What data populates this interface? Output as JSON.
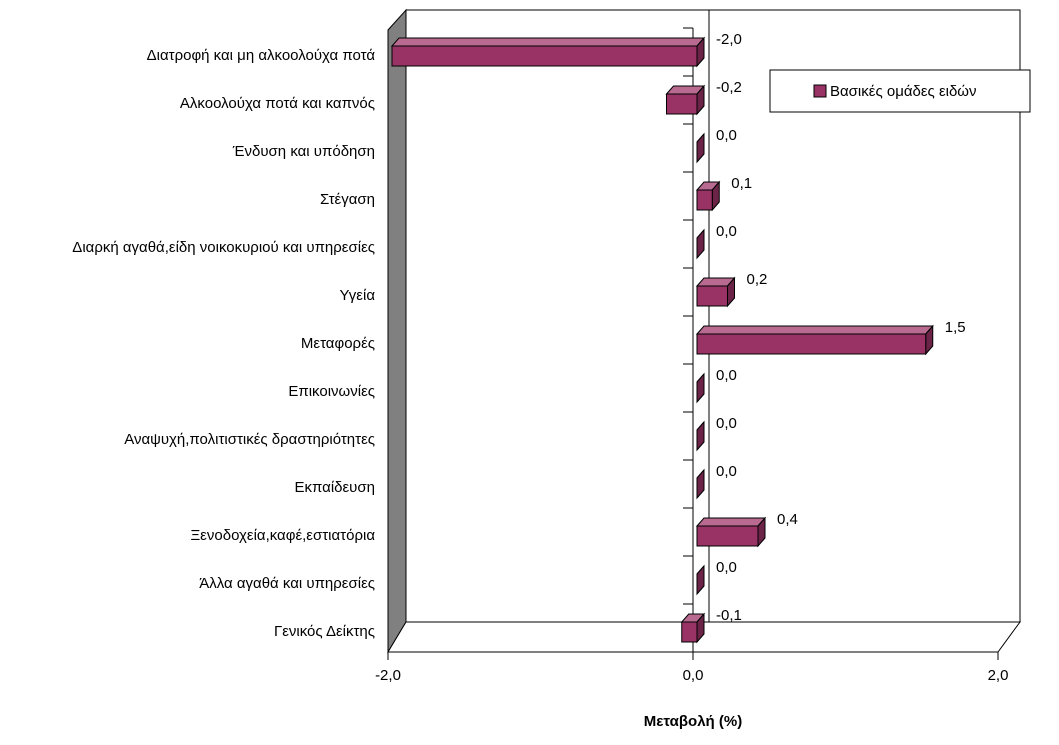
{
  "chart_data": {
    "type": "bar",
    "orientation": "horizontal",
    "x_label": "Μεταβολή (%)",
    "categories": [
      "Διατροφή και μη αλκοολούχα ποτά",
      "Αλκοολούχα ποτά και καπνός",
      "Ένδυση και υπόδηση",
      "Στέγαση",
      "Διαρκή αγαθά,είδη νοικοκυριού και υπηρεσίες",
      "Υγεία",
      "Μεταφορές",
      "Επικοινωνίες",
      "Αναψυχή,πολιτιστικές δραστηριότητες",
      "Εκπαίδευση",
      "Ξενοδοχεία,καφέ,εστιατόρια",
      "Άλλα αγαθά και υπηρεσίες",
      "Γενικός Δείκτης"
    ],
    "series": [
      {
        "name": "Βασικές ομάδες ειδών",
        "color": "#993366",
        "values": [
          -2.0,
          -0.2,
          0.0,
          0.1,
          0.0,
          0.2,
          1.5,
          0.0,
          0.0,
          0.0,
          0.4,
          0.0,
          -0.1
        ],
        "value_labels": [
          "-2,0",
          "-0,2",
          "0,0",
          "0,1",
          "0,0",
          "0,2",
          "1,5",
          "0,0",
          "0,0",
          "0,0",
          "0,4",
          "0,0",
          "-0,1"
        ]
      }
    ],
    "xlim": [
      -2,
      2
    ],
    "xticks": [
      {
        "value": -2,
        "label": "-2,0"
      },
      {
        "value": 0,
        "label": "0,0"
      },
      {
        "value": 2,
        "label": "2,0"
      }
    ],
    "legend": "top-right"
  }
}
